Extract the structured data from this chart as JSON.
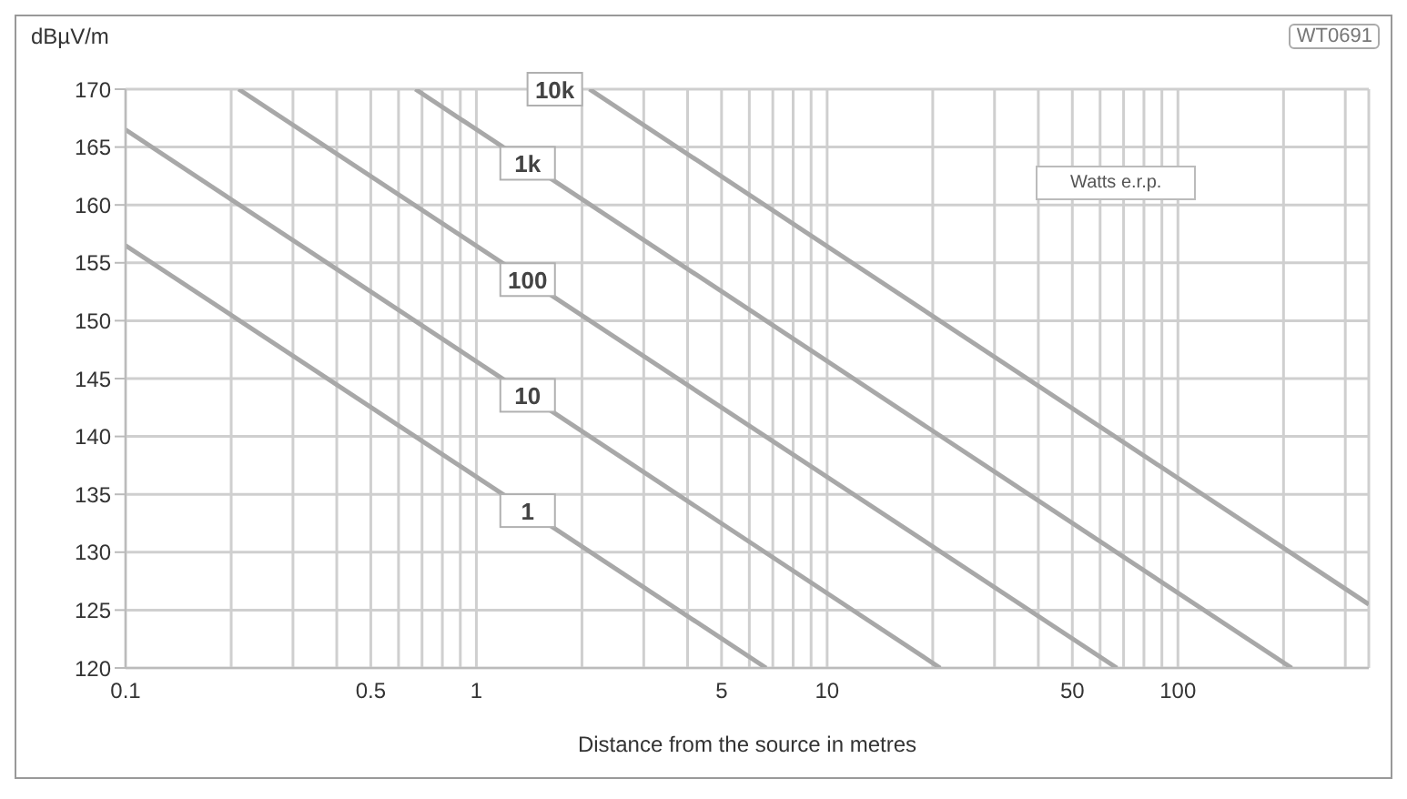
{
  "chart_data": {
    "type": "line",
    "ylabel": "dBµV/m",
    "xlabel": "Distance from the source in metres",
    "log": "x",
    "grid": true,
    "marker": "none",
    "line_style": "solid",
    "xlim": [
      0.1,
      350
    ],
    "ylim": [
      120,
      170
    ],
    "xticks": [
      0.1,
      {
        "value": 0.2,
        "label": null
      },
      {
        "value": 0.3,
        "label": null
      },
      {
        "value": 0.4,
        "label": null
      },
      0.5,
      {
        "value": 0.6,
        "label": null
      },
      {
        "value": 0.7,
        "label": null
      },
      {
        "value": 0.8,
        "label": null
      },
      {
        "value": 0.9,
        "label": null
      },
      1,
      {
        "value": 2,
        "label": null
      },
      {
        "value": 3,
        "label": null
      },
      {
        "value": 4,
        "label": null
      },
      5,
      {
        "value": 6,
        "label": null
      },
      {
        "value": 7,
        "label": null
      },
      {
        "value": 8,
        "label": null
      },
      {
        "value": 9,
        "label": null
      },
      10,
      {
        "value": 20,
        "label": null
      },
      {
        "value": 30,
        "label": null
      },
      {
        "value": 40,
        "label": null
      },
      50,
      {
        "value": 60,
        "label": null
      },
      {
        "value": 70,
        "label": null
      },
      {
        "value": 80,
        "label": null
      },
      {
        "value": 90,
        "label": null
      },
      100,
      {
        "value": 200,
        "label": null
      },
      {
        "value": 300,
        "label": null
      }
    ],
    "yticks": [
      120,
      125,
      130,
      135,
      140,
      145,
      150,
      155,
      160,
      165,
      170
    ],
    "series": [
      {
        "name": "1",
        "color": "#a8a8a8",
        "x": [
          0.1,
          6.7
        ],
        "values": [
          156.5,
          120
        ]
      },
      {
        "name": "10",
        "color": "#a8a8a8",
        "x": [
          0.1,
          21
        ],
        "values": [
          166.5,
          120
        ]
      },
      {
        "name": "100",
        "color": "#a8a8a8",
        "x": [
          0.21,
          67
        ],
        "values": [
          170,
          120
        ]
      },
      {
        "name": "1k",
        "color": "#a8a8a8",
        "x": [
          0.67,
          211
        ],
        "values": [
          170,
          120
        ]
      },
      {
        "name": "10k",
        "color": "#a8a8a8",
        "x": [
          2.1,
          350
        ],
        "values": [
          170,
          125.5
        ]
      }
    ],
    "annotations": [
      "Watts e.r.p.",
      "WT0691"
    ]
  }
}
